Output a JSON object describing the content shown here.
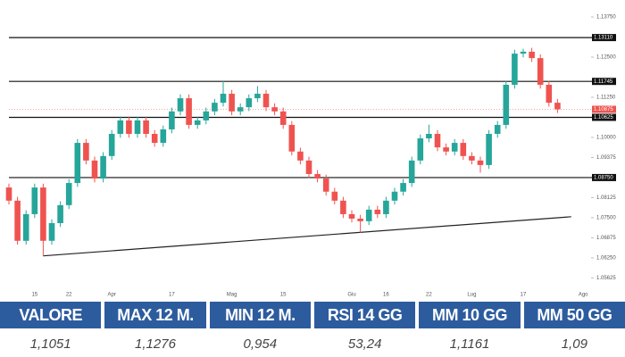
{
  "chart_data": {
    "type": "candlestick",
    "up_color": "#26a69a",
    "down_color": "#ef5350",
    "ylim": [
      1.0544,
      1.1428
    ],
    "yticks": [
      {
        "value": 1.1375,
        "label": "1.13750"
      },
      {
        "value": 1.125,
        "label": "1.12500"
      },
      {
        "value": 1.1125,
        "label": "1.11250"
      },
      {
        "value": 1.1,
        "label": "1.10000"
      },
      1.09375,
      {
        "value": 1.08125,
        "label": "1.08125"
      },
      {
        "value": 1.075,
        "label": "1.07500"
      },
      1.06875,
      {
        "value": 1.0625,
        "label": "1.06250"
      },
      1.05625
    ],
    "x_labels": [
      {
        "index": 3,
        "label": "15"
      },
      {
        "index": 7,
        "label": "22"
      },
      {
        "index": 12,
        "label": "Apr"
      },
      {
        "index": 19,
        "label": "17"
      },
      {
        "index": 26,
        "label": "Mag"
      },
      {
        "index": 32,
        "label": "15"
      },
      {
        "index": 40,
        "label": "Giu"
      },
      {
        "index": 44,
        "label": "16"
      },
      {
        "index": 49,
        "label": "22"
      },
      {
        "index": 54,
        "label": "Lug"
      },
      {
        "index": 60,
        "label": "17"
      },
      {
        "index": 67,
        "label": "Ago"
      }
    ],
    "open": [
      1.0844,
      1.0803,
      1.0678,
      1.0761,
      1.0844,
      1.0678,
      1.0733,
      1.0789,
      1.0858,
      1.0983,
      1.0928,
      1.0872,
      1.0942,
      1.1011,
      1.1053,
      1.1011,
      1.1053,
      1.1011,
      1.0983,
      1.1025,
      1.1081,
      1.1122,
      1.1039,
      1.1053,
      1.1081,
      1.1108,
      1.1136,
      1.1081,
      1.1094,
      1.1122,
      1.1136,
      1.1094,
      1.1081,
      1.1039,
      1.0956,
      1.0928,
      1.0886,
      1.0872,
      1.0831,
      1.0803,
      1.0761,
      1.0747,
      1.0739,
      1.0775,
      1.0761,
      1.0803,
      1.0831,
      1.0858,
      1.0928,
      1.0997,
      1.1011,
      1.0969,
      1.0956,
      1.0983,
      1.0942,
      1.0928,
      1.0914,
      1.1011,
      1.1039,
      1.1164,
      1.1261,
      1.1267,
      1.1247,
      1.1164,
      1.1108
    ],
    "high": [
      1.0856,
      1.0815,
      1.0773,
      1.0856,
      1.0856,
      1.0745,
      1.0801,
      1.087,
      1.0995,
      1.0995,
      1.094,
      1.0954,
      1.1023,
      1.1065,
      1.1065,
      1.1065,
      1.1065,
      1.1023,
      1.1037,
      1.1093,
      1.1134,
      1.1134,
      1.1065,
      1.1093,
      1.112,
      1.1175,
      1.1148,
      1.1106,
      1.1134,
      1.116,
      1.1148,
      1.1106,
      1.1093,
      1.1051,
      1.0968,
      1.094,
      1.0898,
      1.0884,
      1.0843,
      1.0815,
      1.0773,
      1.0759,
      1.0787,
      1.0787,
      1.0815,
      1.0843,
      1.087,
      1.094,
      1.1009,
      1.104,
      1.1023,
      1.0981,
      1.0995,
      1.0995,
      1.0954,
      1.094,
      1.1023,
      1.1051,
      1.1176,
      1.1273,
      1.1276,
      1.1279,
      1.1259,
      1.1176,
      1.112
    ],
    "low": [
      1.0791,
      1.0666,
      1.0666,
      1.0749,
      1.0631,
      1.0666,
      1.0721,
      1.0777,
      1.0846,
      1.0916,
      1.086,
      1.086,
      1.093,
      1.0999,
      1.0999,
      1.0999,
      1.0999,
      1.0971,
      1.0971,
      1.1013,
      1.1069,
      1.1027,
      1.1027,
      1.1041,
      1.1069,
      1.1096,
      1.1069,
      1.1069,
      1.1082,
      1.111,
      1.1082,
      1.1069,
      1.1027,
      1.0944,
      1.0916,
      1.0874,
      1.086,
      1.0819,
      1.0791,
      1.0749,
      1.0735,
      1.0703,
      1.0727,
      1.0749,
      1.0749,
      1.0791,
      1.0819,
      1.0846,
      1.0916,
      1.0985,
      1.0957,
      1.0944,
      1.0944,
      1.093,
      1.0916,
      1.089,
      1.0902,
      1.0999,
      1.1027,
      1.1152,
      1.1249,
      1.1235,
      1.1152,
      1.1096,
      1.1076
    ],
    "close": [
      1.0803,
      1.0678,
      1.0761,
      1.0844,
      1.0678,
      1.0733,
      1.0789,
      1.0858,
      1.0983,
      1.0928,
      1.0872,
      1.0942,
      1.1011,
      1.1053,
      1.1011,
      1.1053,
      1.1011,
      1.0983,
      1.1025,
      1.1081,
      1.1122,
      1.1039,
      1.1053,
      1.1081,
      1.1108,
      1.1136,
      1.1081,
      1.1094,
      1.1122,
      1.1136,
      1.1094,
      1.1081,
      1.1039,
      1.0956,
      1.0928,
      1.0886,
      1.0872,
      1.0831,
      1.0803,
      1.0761,
      1.0747,
      1.0739,
      1.0775,
      1.0761,
      1.0803,
      1.0831,
      1.0858,
      1.0928,
      1.0997,
      1.1011,
      1.0969,
      1.0956,
      1.0983,
      1.0942,
      1.0928,
      1.0914,
      1.1011,
      1.1039,
      1.1164,
      1.1261,
      1.1267,
      1.1247,
      1.1164,
      1.1108,
      1.10875
    ],
    "levels": [
      {
        "value": 1.1311,
        "label": "1.13110"
      },
      1.11745,
      1.10625,
      {
        "value": 1.0875,
        "label": "1.08750"
      }
    ],
    "trendline": {
      "from": [
        4,
        1.0631
      ],
      "to": [
        65.6,
        1.0753
      ]
    }
  },
  "table": {
    "headers": [
      "VALORE",
      "MAX 12 M.",
      "MIN 12 M.",
      "RSI 14 GG",
      "MM 10 GG",
      "MM 50 GG"
    ],
    "values": [
      "1,1051",
      "1,1276",
      "0,954",
      "53,24",
      "1,1161",
      "1,09"
    ]
  }
}
